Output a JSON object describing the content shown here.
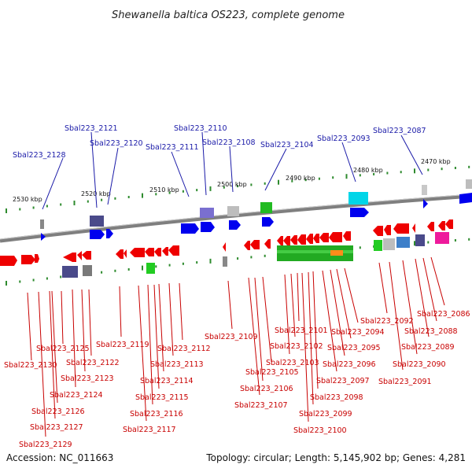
{
  "title": "Shewanella baltica OS223, complete genome",
  "footer": {
    "accession": "Accession: NC_011663",
    "summary": "Topology: circular; Length: 5,145,902 bp; Genes: 4,281"
  },
  "colors": {
    "top_label": "#1a1aa8",
    "bottom_label": "#c80000",
    "forward_gene": "#0000ee",
    "reverse_gene": "#ee0000",
    "backbone": "#808080",
    "tick": "#2e8b2e"
  },
  "scale_labels": [
    "2530 kbp",
    "2520 kbp",
    "2510 kbp",
    "2500 kbp",
    "2490 kbp",
    "2480 kbp",
    "2470 kbp"
  ],
  "top_genes": [
    "Sbal223_2128",
    "Sbal223_2121",
    "Sbal223_2120",
    "Sbal223_2111",
    "Sbal223_2110",
    "Sbal223_2108",
    "Sbal223_2104",
    "Sbal223_2093",
    "Sbal223_2087"
  ],
  "bottom_genes": [
    "Sbal223_2130",
    "Sbal223_2125",
    "Sbal223_2122",
    "Sbal223_2123",
    "Sbal223_2124",
    "Sbal223_2126",
    "Sbal223_2127",
    "Sbal223_2129",
    "Sbal223_2119",
    "Sbal223_2112",
    "Sbal223_2113",
    "Sbal223_2114",
    "Sbal223_2115",
    "Sbal223_2116",
    "Sbal223_2117",
    "Sbal223_2109",
    "Sbal223_2105",
    "Sbal223_2106",
    "Sbal223_2107",
    "Sbal223_2101",
    "Sbal223_2102",
    "Sbal223_2103",
    "Sbal223_2098",
    "Sbal223_2099",
    "Sbal223_2100",
    "Sbal223_2097",
    "Sbal223_2096",
    "Sbal223_2095",
    "Sbal223_2094",
    "Sbal223_2092",
    "Sbal223_2091",
    "Sbal223_2090",
    "Sbal223_2089",
    "Sbal223_2088",
    "Sbal223_2086"
  ]
}
